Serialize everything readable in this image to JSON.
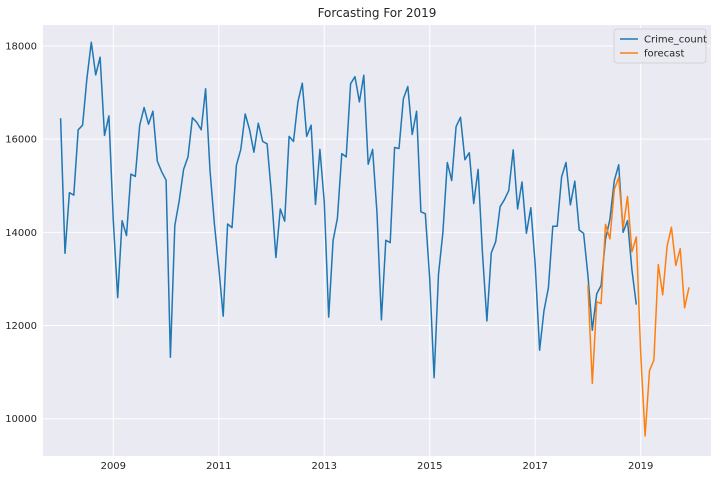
{
  "chart_data": {
    "type": "line",
    "title": "Forcasting For 2019",
    "xlabel": "",
    "ylabel": "",
    "grid": true,
    "legend_position": "top-right",
    "x_ticks": [
      "2009",
      "2011",
      "2013",
      "2015",
      "2017",
      "2019"
    ],
    "y_ticks": [
      "10000",
      "12000",
      "14000",
      "16000",
      "18000"
    ],
    "xlim": [
      "2007-09",
      "2020-05"
    ],
    "ylim": [
      9200,
      18450
    ],
    "series": [
      {
        "name": "Crime_count",
        "color": "#1f77b4",
        "x": [
          "2008-01",
          "2008-02",
          "2008-03",
          "2008-04",
          "2008-05",
          "2008-06",
          "2008-07",
          "2008-08",
          "2008-09",
          "2008-10",
          "2008-11",
          "2008-12",
          "2009-01",
          "2009-02",
          "2009-03",
          "2009-04",
          "2009-05",
          "2009-06",
          "2009-07",
          "2009-08",
          "2009-09",
          "2009-10",
          "2009-11",
          "2009-12",
          "2010-01",
          "2010-02",
          "2010-03",
          "2010-04",
          "2010-05",
          "2010-06",
          "2010-07",
          "2010-08",
          "2010-09",
          "2010-10",
          "2010-11",
          "2010-12",
          "2011-01",
          "2011-02",
          "2011-03",
          "2011-04",
          "2011-05",
          "2011-06",
          "2011-07",
          "2011-08",
          "2011-09",
          "2011-10",
          "2011-11",
          "2011-12",
          "2012-01",
          "2012-02",
          "2012-03",
          "2012-04",
          "2012-05",
          "2012-06",
          "2012-07",
          "2012-08",
          "2012-09",
          "2012-10",
          "2012-11",
          "2012-12",
          "2013-01",
          "2013-02",
          "2013-03",
          "2013-04",
          "2013-05",
          "2013-06",
          "2013-07",
          "2013-08",
          "2013-09",
          "2013-10",
          "2013-11",
          "2013-12",
          "2014-01",
          "2014-02",
          "2014-03",
          "2014-04",
          "2014-05",
          "2014-06",
          "2014-07",
          "2014-08",
          "2014-09",
          "2014-10",
          "2014-11",
          "2014-12",
          "2015-01",
          "2015-02",
          "2015-03",
          "2015-04",
          "2015-05",
          "2015-06",
          "2015-07",
          "2015-08",
          "2015-09",
          "2015-10",
          "2015-11",
          "2015-12",
          "2016-01",
          "2016-02",
          "2016-03",
          "2016-04",
          "2016-05",
          "2016-06",
          "2016-07",
          "2016-08",
          "2016-09",
          "2016-10",
          "2016-11",
          "2016-12",
          "2017-01",
          "2017-02",
          "2017-03",
          "2017-04",
          "2017-05",
          "2017-06",
          "2017-07",
          "2017-08",
          "2017-09",
          "2017-10",
          "2017-11",
          "2017-12",
          "2018-01",
          "2018-02",
          "2018-03",
          "2018-04",
          "2018-05",
          "2018-06",
          "2018-07",
          "2018-08",
          "2018-09",
          "2018-10",
          "2018-11",
          "2018-12"
        ],
        "y": [
          16450,
          13550,
          14850,
          14800,
          16200,
          16300,
          17300,
          18080,
          17380,
          17760,
          16080,
          16500,
          14250,
          12600,
          14250,
          13930,
          15250,
          15200,
          16300,
          16680,
          16320,
          16600,
          15530,
          15300,
          15120,
          11320,
          14140,
          14680,
          15350,
          15620,
          16460,
          16360,
          16200,
          17080,
          15330,
          14180,
          13240,
          12200,
          14180,
          14100,
          15440,
          15780,
          16540,
          16200,
          15720,
          16340,
          15950,
          15900,
          14810,
          13460,
          14500,
          14240,
          16060,
          15950,
          16800,
          17200,
          16060,
          16300,
          14600,
          15780,
          14640,
          12180,
          13830,
          14300,
          15690,
          15620,
          17190,
          17340,
          16800,
          17370,
          15460,
          15780,
          14410,
          12120,
          13830,
          13780,
          15820,
          15800,
          16870,
          17130,
          16100,
          16600,
          14440,
          14400,
          13010,
          10880,
          13100,
          14000,
          15500,
          15110,
          16270,
          16470,
          15560,
          15710,
          14620,
          15350,
          13540,
          12100,
          13560,
          13800,
          14550,
          14700,
          14900,
          15770,
          14500,
          15080,
          13980,
          14530,
          13310,
          11470,
          12320,
          12810,
          14130,
          14130,
          15190,
          15500,
          14590,
          15100,
          14050,
          13980,
          13080,
          11900,
          12680,
          12860,
          13850,
          14280,
          15110,
          15450,
          14000,
          14250,
          13200,
          12450
        ]
      },
      {
        "name": "forecast",
        "color": "#ff7f0e",
        "x": [
          "2018-01",
          "2018-02",
          "2018-03",
          "2018-04",
          "2018-05",
          "2018-06",
          "2018-07",
          "2018-08",
          "2018-09",
          "2018-10",
          "2018-11",
          "2018-12",
          "2019-01",
          "2019-02",
          "2019-03",
          "2019-04",
          "2019-05",
          "2019-06",
          "2019-07",
          "2019-08",
          "2019-09",
          "2019-10",
          "2019-11",
          "2019-12"
        ],
        "y": [
          12870,
          10760,
          12510,
          12470,
          14170,
          13860,
          14920,
          15180,
          14090,
          14770,
          13580,
          13900,
          11400,
          9630,
          11030,
          11260,
          13310,
          12660,
          13700,
          14110,
          13290,
          13650,
          12380,
          12820
        ]
      }
    ]
  }
}
